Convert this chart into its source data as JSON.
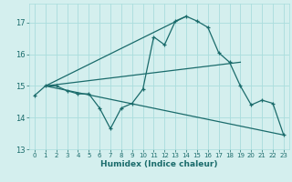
{
  "xlabel": "Humidex (Indice chaleur)",
  "bg_color": "#d4efee",
  "line_color": "#1a6b6b",
  "grid_color": "#aadddd",
  "xlim": [
    -0.5,
    23.5
  ],
  "ylim": [
    13.0,
    17.6
  ],
  "yticks": [
    13,
    14,
    15,
    16,
    17
  ],
  "xticks": [
    0,
    1,
    2,
    3,
    4,
    5,
    6,
    7,
    8,
    9,
    10,
    11,
    12,
    13,
    14,
    15,
    16,
    17,
    18,
    19,
    20,
    21,
    22,
    23
  ],
  "main_x": [
    0,
    1,
    2,
    3,
    4,
    5,
    6,
    7,
    8,
    9,
    10,
    11,
    12,
    13,
    14,
    15,
    16,
    17,
    18,
    19,
    20,
    21,
    22,
    23
  ],
  "main_y": [
    14.7,
    15.0,
    15.0,
    14.85,
    14.75,
    14.75,
    14.3,
    13.65,
    14.3,
    14.45,
    14.9,
    16.55,
    16.3,
    17.05,
    17.2,
    17.05,
    16.85,
    16.05,
    15.75,
    15.0,
    14.4,
    14.55,
    14.45,
    13.45
  ],
  "line1_x": [
    1,
    23
  ],
  "line1_y": [
    15.0,
    13.45
  ],
  "line2_x": [
    1,
    14
  ],
  "line2_y": [
    15.0,
    17.2
  ],
  "line3_x": [
    1,
    19
  ],
  "line3_y": [
    15.0,
    15.75
  ]
}
